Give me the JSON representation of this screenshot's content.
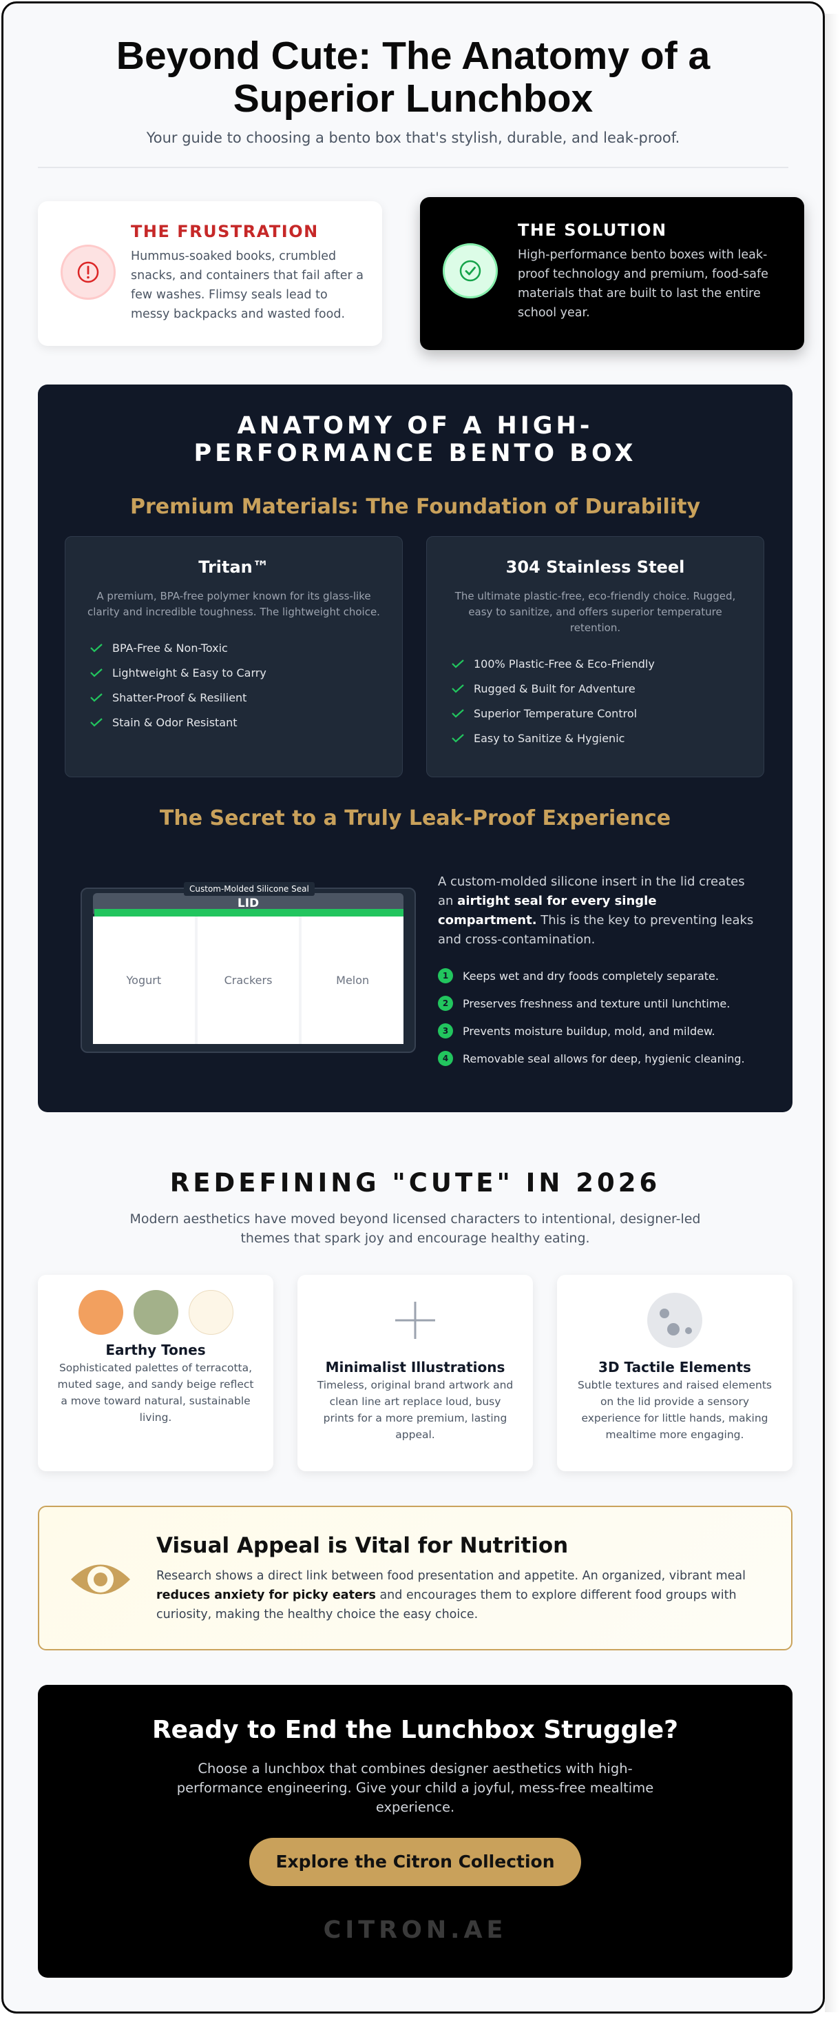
{
  "header": {
    "title": "Beyond Cute: The Anatomy of a Superior Lunchbox",
    "subtitle": "Your guide to choosing a bento box that's stylish, durable, and leak-proof."
  },
  "problem": {
    "title": "THE FRUSTRATION",
    "body": "Hummus-soaked books, crumbled snacks, and containers that fail after a few washes. Flimsy seals lead to messy backpacks and wasted food.",
    "icon": "alert-circle-icon"
  },
  "solution": {
    "title": "THE SOLUTION",
    "body": "High-performance bento boxes with leak-proof technology and premium, food-safe materials that are built to last the entire school year.",
    "icon": "check-circle-icon"
  },
  "anatomy": {
    "title": "ANATOMY OF A HIGH-PERFORMANCE BENTO BOX",
    "materials_heading": "Premium Materials: The Foundation of Durability",
    "materials": [
      {
        "name": "Tritan™",
        "description": "A premium, BPA-free polymer known for its glass-like clarity and incredible toughness. The lightweight choice.",
        "features": [
          "BPA-Free & Non-Toxic",
          "Lightweight & Easy to Carry",
          "Shatter-Proof & Resilient",
          "Stain & Odor Resistant"
        ]
      },
      {
        "name": "304 Stainless Steel",
        "description": "The ultimate plastic-free, eco-friendly choice. Rugged, easy to sanitize, and offers superior temperature retention.",
        "features": [
          "100% Plastic-Free & Eco-Friendly",
          "Rugged & Built for Adventure",
          "Superior Temperature Control",
          "Easy to Sanitize & Hygienic"
        ]
      }
    ],
    "leak_heading": "The Secret to a Truly Leak-Proof Experience",
    "diagram": {
      "seal_label": "Custom-Molded Silicone Seal",
      "lid_label": "LID",
      "compartments": [
        "Yogurt",
        "Crackers",
        "Melon"
      ]
    },
    "leak_intro_pre": "A custom-molded silicone insert in the lid creates an ",
    "leak_intro_bold": "airtight seal for every single compartment.",
    "leak_intro_post": " This is the key to preventing leaks and cross-contamination.",
    "benefits": [
      {
        "num": "1",
        "text": "Keeps wet and dry foods completely separate."
      },
      {
        "num": "2",
        "text": "Preserves freshness and texture until lunchtime."
      },
      {
        "num": "3",
        "text": "Prevents moisture buildup, mold, and mildew."
      },
      {
        "num": "4",
        "text": "Removable seal allows for deep, hygienic cleaning."
      }
    ]
  },
  "cute": {
    "title": "REDEFINING \"CUTE\" IN 2026",
    "subtitle": "Modern aesthetics have moved beyond licensed characters to intentional, designer-led themes that spark joy and encourage healthy eating.",
    "trends": [
      {
        "title": "Earthy Tones",
        "body": "Sophisticated palettes of terracotta, muted sage, and sandy beige reflect a move toward natural, sustainable living."
      },
      {
        "title": "Minimalist Illustrations",
        "body": "Timeless, original brand artwork and clean line art replace loud, busy prints for a more premium, lasting appeal.",
        "icon": "plus-line-icon"
      },
      {
        "title": "3D Tactile Elements",
        "body": "Subtle textures and raised elements on the lid provide a sensory experience for little hands, making mealtime more engaging.",
        "icon": "tactile-dots-icon"
      }
    ],
    "swatch_colors": [
      "#f2a05f",
      "#a3b18a",
      "#fdf6e7"
    ]
  },
  "nutrition": {
    "title": "Visual Appeal is Vital for Nutrition",
    "body_pre": "Research shows a direct link between food presentation and appetite. An organized, vibrant meal ",
    "body_bold": "reduces anxiety for picky eaters",
    "body_post": " and encourages them to explore different food groups with curiosity, making the healthy choice the easy choice.",
    "icon": "eye-icon"
  },
  "cta": {
    "title": "Ready to End the Lunchbox Struggle?",
    "body": "Choose a lunchbox that combines designer aesthetics with high-performance engineering. Give your child a joyful, mess-free mealtime experience.",
    "button": "Explore the Citron Collection",
    "brand": "CITRON.AE"
  },
  "colors": {
    "accent_gold": "#c9a15b",
    "success_green": "#22c55e",
    "problem_red": "#c62828",
    "dark_panel": "#111827"
  }
}
